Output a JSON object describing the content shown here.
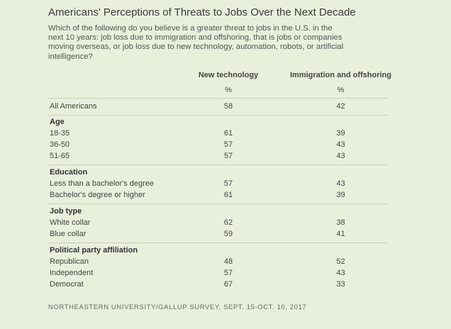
{
  "title": "Americans' Perceptions of Threats to Jobs Over the Next Decade",
  "question": "Which of the following do you believe is a greater threat to jobs in the U.S. in the next 10 years: job loss due to immigration and offshoring, that is jobs or companies moving overseas, or job loss due to new technology, automation, robots, or artificial intelligence?",
  "columns": [
    "New technology",
    "Immigration and offshoring"
  ],
  "unit": "%",
  "overall": {
    "label": "All Americans",
    "v1": "58",
    "v2": "42"
  },
  "groups": [
    {
      "name": "Age",
      "rows": [
        {
          "label": "18-35",
          "v1": "61",
          "v2": "39"
        },
        {
          "label": "36-50",
          "v1": "57",
          "v2": "43"
        },
        {
          "label": "51-65",
          "v1": "57",
          "v2": "43"
        }
      ]
    },
    {
      "name": "Education",
      "rows": [
        {
          "label": "Less than a bachelor's degree",
          "v1": "57",
          "v2": "43"
        },
        {
          "label": "Bachelor's degree or higher",
          "v1": "61",
          "v2": "39"
        }
      ]
    },
    {
      "name": "Job type",
      "rows": [
        {
          "label": "White collar",
          "v1": "62",
          "v2": "38"
        },
        {
          "label": "Blue collar",
          "v1": "59",
          "v2": "41"
        }
      ]
    },
    {
      "name": "Political party affiliation",
      "rows": [
        {
          "label": "Republican",
          "v1": "48",
          "v2": "52"
        },
        {
          "label": "Independent",
          "v1": "57",
          "v2": "43"
        },
        {
          "label": "Democrat",
          "v1": "67",
          "v2": "33"
        }
      ]
    }
  ],
  "source": "NORTHEASTERN UNIVERSITY/GALLUP SURVEY, SEPT. 15-OCT. 10, 2017"
}
